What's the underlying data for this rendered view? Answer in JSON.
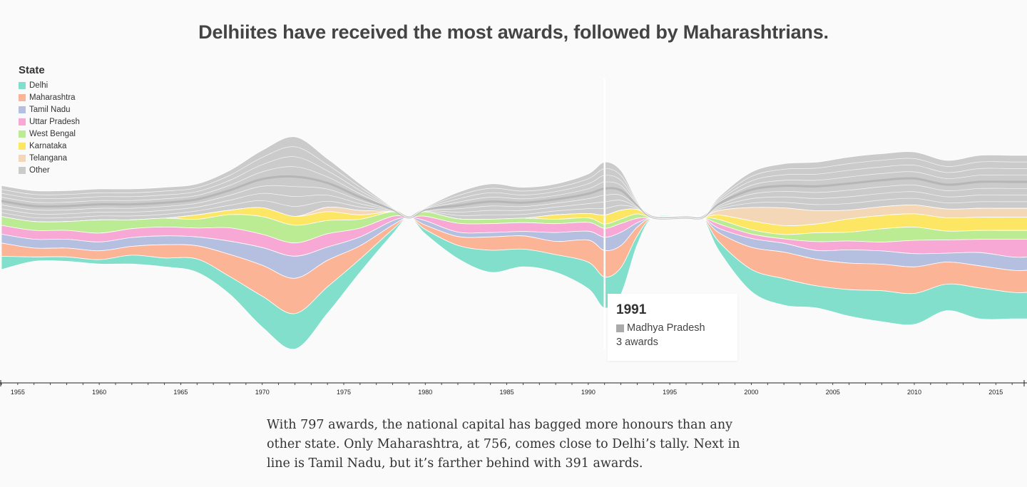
{
  "title": "Delhiites have received the most awards, followed by Maharashtrians.",
  "legend": {
    "title": "State",
    "items": [
      {
        "label": "Delhi",
        "color": "#81dfcb"
      },
      {
        "label": "Maharashtra",
        "color": "#fcb497"
      },
      {
        "label": "Tamil Nadu",
        "color": "#b5bfdf"
      },
      {
        "label": "Uttar Pradesh",
        "color": "#f8a8d4"
      },
      {
        "label": "West Bengal",
        "color": "#bbeb93"
      },
      {
        "label": "Karnataka",
        "color": "#fde664"
      },
      {
        "label": "Telangana",
        "color": "#f3d7b7"
      },
      {
        "label": "Other",
        "color": "#cbcbcb"
      }
    ]
  },
  "tooltip": {
    "year": "1991",
    "state": "Madhya Pradesh",
    "count": "3 awards"
  },
  "caption": "With 797 awards, the national capital has bagged more honours than any other state. Only Maharashtra, at 756, comes close to Delhi’s tally. Next in line is Tamil Nadu, but it’s farther behind with 391 awards.",
  "chart_data": {
    "type": "area",
    "stacked": true,
    "offset": "wiggle",
    "x_ticks": [
      "1955",
      "1960",
      "1965",
      "1970",
      "1975",
      "1980",
      "1985",
      "1990",
      "1995",
      "2000",
      "2005",
      "2010",
      "2015"
    ],
    "xlim": [
      1954,
      2017
    ],
    "highlight_year": 1991,
    "x": [
      1954,
      1956,
      1958,
      1960,
      1962,
      1964,
      1966,
      1968,
      1970,
      1972,
      1974,
      1976,
      1978,
      1979,
      1980,
      1982,
      1984,
      1986,
      1988,
      1990,
      1991,
      1992,
      1993,
      1994,
      1996,
      1997,
      1998,
      2000,
      2002,
      2004,
      2006,
      2008,
      2010,
      2012,
      2014,
      2016,
      2017
    ],
    "series": [
      {
        "name": "Delhi",
        "values": [
          3,
          1,
          1,
          1,
          2,
          2,
          3,
          4,
          7,
          8,
          6,
          3,
          1,
          0,
          1,
          3,
          5,
          4,
          4,
          6,
          7,
          6,
          2,
          0,
          0,
          0,
          2,
          5,
          6,
          5,
          6,
          7,
          7,
          6,
          7,
          6,
          6
        ]
      },
      {
        "name": "Maharashtra",
        "values": [
          3,
          2,
          2,
          2,
          2,
          3,
          3,
          5,
          7,
          8,
          6,
          3,
          1,
          0,
          1,
          2,
          3,
          3,
          3,
          5,
          6,
          5,
          2,
          0,
          0,
          0,
          2,
          5,
          6,
          6,
          6,
          6,
          6,
          5,
          5,
          5,
          5
        ]
      },
      {
        "name": "Tamil Nadu",
        "values": [
          2,
          2,
          2,
          2,
          2,
          2,
          2,
          3,
          4,
          5,
          3,
          2,
          1,
          0,
          1,
          1,
          1,
          1,
          2,
          2,
          3,
          3,
          1,
          0,
          0,
          0,
          1,
          2,
          2,
          2,
          3,
          3,
          3,
          2,
          3,
          3,
          3
        ]
      },
      {
        "name": "Uttar Pradesh",
        "values": [
          2,
          2,
          2,
          2,
          2,
          2,
          2,
          3,
          3,
          3,
          3,
          2,
          1,
          0,
          1,
          2,
          2,
          2,
          2,
          2,
          2,
          2,
          1,
          0,
          0,
          0,
          1,
          1,
          1,
          2,
          2,
          2,
          3,
          3,
          3,
          4,
          4
        ]
      },
      {
        "name": "West Bengal",
        "values": [
          2,
          2,
          2,
          3,
          2,
          2,
          2,
          3,
          4,
          4,
          3,
          2,
          1,
          0,
          1,
          1,
          1,
          1,
          1,
          1,
          1,
          1,
          1,
          0,
          0,
          0,
          1,
          1,
          1,
          2,
          2,
          3,
          3,
          2,
          2,
          2,
          2
        ]
      },
      {
        "name": "Karnataka",
        "values": [
          0,
          0,
          0,
          0,
          0,
          0,
          1,
          1,
          2,
          2,
          2,
          1,
          0,
          0,
          0,
          0,
          0,
          0,
          1,
          1,
          2,
          2,
          1,
          0,
          0,
          0,
          1,
          2,
          2,
          2,
          3,
          3,
          3,
          3,
          3,
          3,
          3
        ]
      },
      {
        "name": "Telangana",
        "values": [
          0,
          0,
          0,
          0,
          0,
          0,
          0,
          0,
          0,
          0,
          1,
          1,
          0,
          0,
          0,
          0,
          0,
          0,
          0,
          0,
          0,
          0,
          0,
          0,
          0,
          0,
          1,
          3,
          4,
          3,
          2,
          2,
          2,
          2,
          2,
          2,
          2
        ]
      },
      {
        "name": "Other",
        "values": [
          7,
          7,
          7,
          7,
          7,
          7,
          7,
          9,
          13,
          18,
          11,
          6,
          1,
          0,
          1,
          6,
          8,
          7,
          7,
          9,
          12,
          9,
          2,
          0,
          0,
          0,
          3,
          8,
          10,
          11,
          12,
          12,
          12,
          11,
          12,
          12,
          12
        ]
      }
    ],
    "grid": false,
    "legend_position": "top-left"
  }
}
